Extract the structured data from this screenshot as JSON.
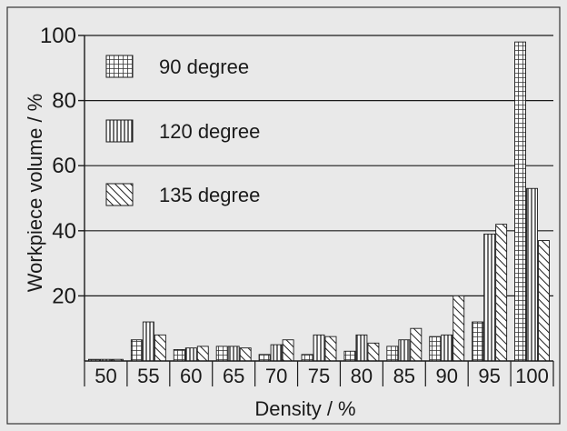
{
  "chart_data": {
    "type": "bar",
    "title": "",
    "xlabel": "Density / %",
    "ylabel": "Workpiece volume / %",
    "ylim": [
      0,
      100
    ],
    "yticks": [
      20,
      40,
      60,
      80,
      100
    ],
    "grid": true,
    "legend_position": "top-left",
    "categories": [
      "50",
      "55",
      "60",
      "65",
      "70",
      "75",
      "80",
      "85",
      "90",
      "95",
      "100"
    ],
    "series": [
      {
        "name": "90 degree",
        "pattern": "grid",
        "values": [
          0.5,
          6.5,
          3.5,
          4.5,
          2,
          2,
          3,
          4.5,
          7.5,
          12,
          98
        ]
      },
      {
        "name": "120 degree",
        "pattern": "vertical",
        "values": [
          0.5,
          12,
          4,
          4.5,
          5,
          8,
          8,
          6.5,
          8,
          39,
          53
        ]
      },
      {
        "name": "135 degree",
        "pattern": "diagonal",
        "values": [
          0.5,
          8,
          4.5,
          4,
          6.5,
          7.5,
          5.5,
          10,
          20,
          42,
          37
        ]
      }
    ],
    "colors": {
      "background": "#e9e9e9",
      "bar_fill": "#ffffff",
      "ink": "#1a1a1a"
    }
  }
}
